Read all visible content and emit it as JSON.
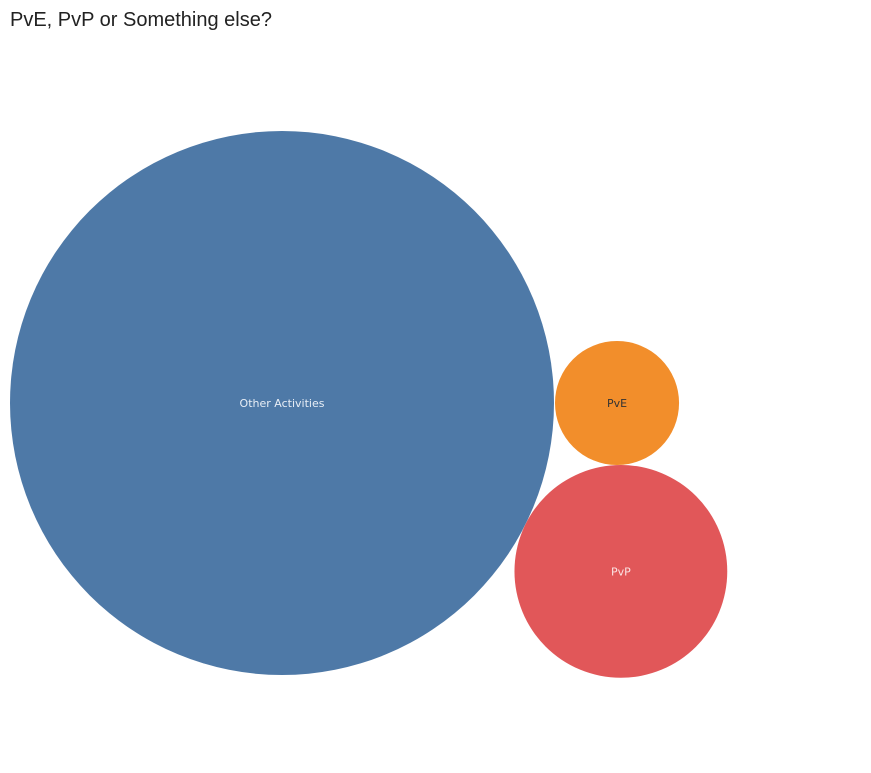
{
  "chart_data": {
    "type": "bubble",
    "title": "PvE, PvP or Something else?",
    "series": [
      {
        "name": "Other Activities",
        "value": 100,
        "color": "#4e79a7",
        "label_color": "#e8eef6"
      },
      {
        "name": "PvE",
        "value": 5.2,
        "color": "#f28e2b",
        "label_color": "#333333"
      },
      {
        "name": "PvP",
        "value": 15.3,
        "color": "#e15759",
        "label_color": "#fbe3e3"
      }
    ]
  }
}
